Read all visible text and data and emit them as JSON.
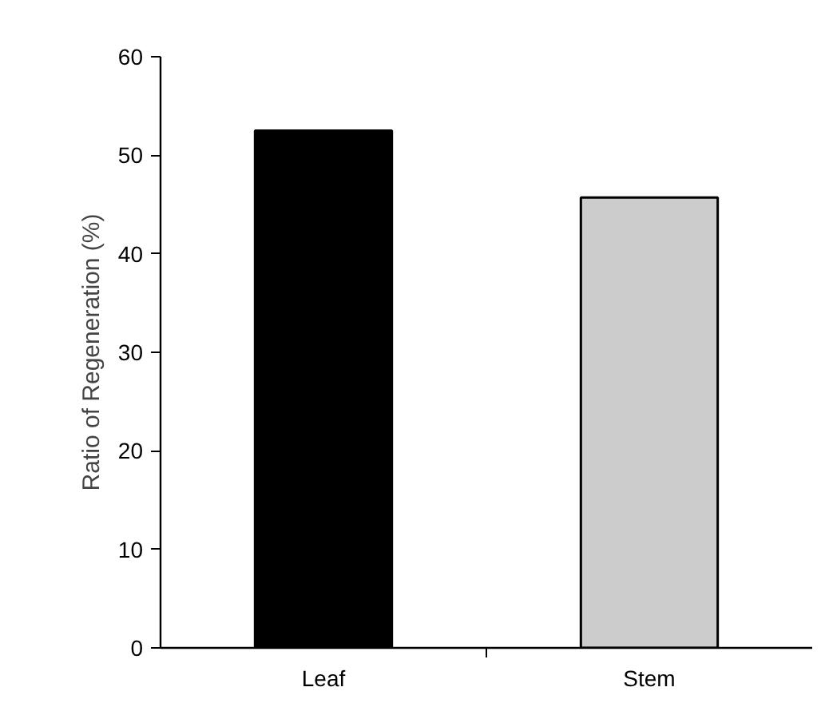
{
  "chart_data": {
    "type": "bar",
    "ylabel": "Ratio of Regeneration (%)",
    "categories": [
      "Leaf",
      "Stem"
    ],
    "values": [
      52.5,
      45.7
    ],
    "colors": [
      "#000000",
      "#cccccc"
    ],
    "ylim": [
      0,
      60
    ],
    "yticks": [
      0,
      10,
      20,
      30,
      40,
      50,
      60
    ],
    "grid": false
  }
}
